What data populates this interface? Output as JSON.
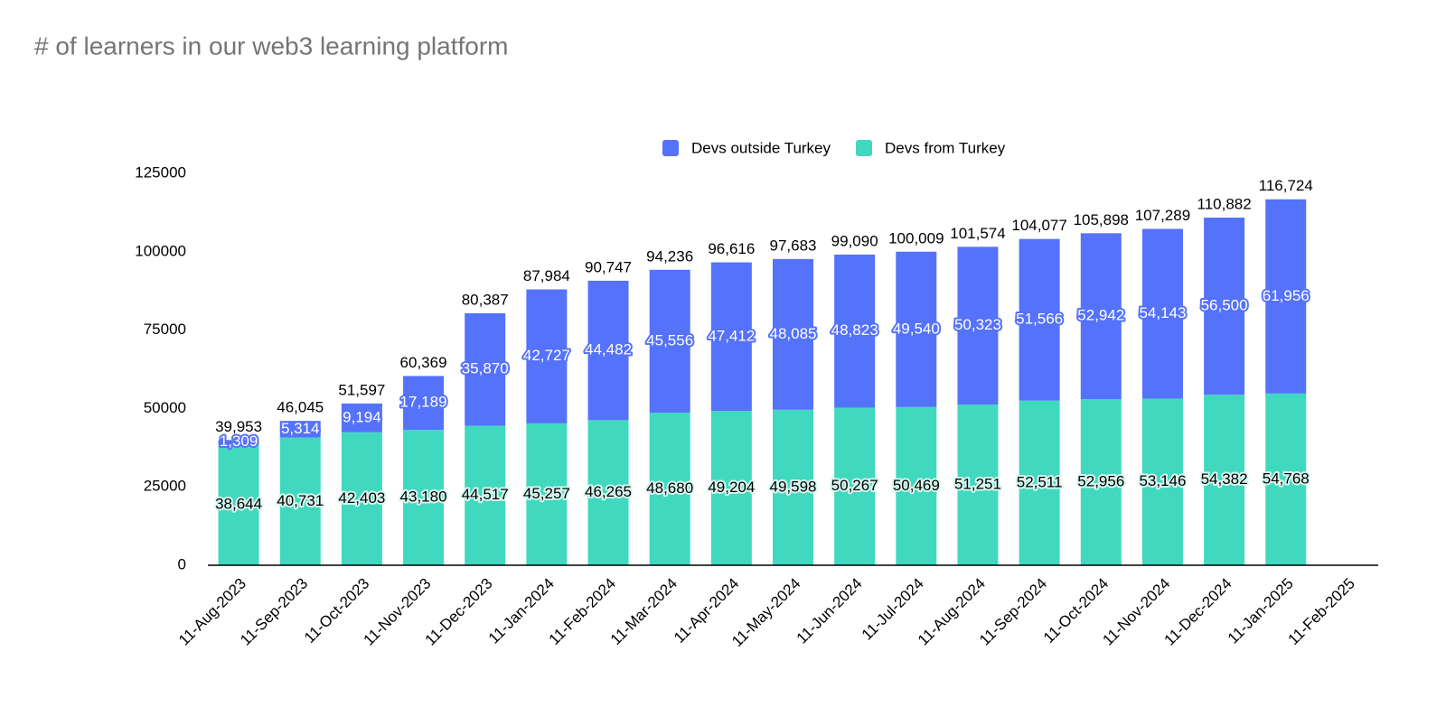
{
  "chart_data": {
    "type": "stacked-bar",
    "title": "# of learners in our web3 learning platform",
    "categories": [
      "11-Aug-2023",
      "11-Sep-2023",
      "11-Oct-2023",
      "11-Nov-2023",
      "11-Dec-2023",
      "11-Jan-2024",
      "11-Feb-2024",
      "11-Mar-2024",
      "11-Apr-2024",
      "11-May-2024",
      "11-Jun-2024",
      "11-Jul-2024",
      "11-Aug-2024",
      "11-Sep-2024",
      "11-Oct-2024",
      "11-Nov-2024",
      "11-Dec-2024",
      "11-Jan-2025",
      "11-Feb-2025"
    ],
    "series": [
      {
        "name": "Devs from Turkey",
        "color": "#40d9bf",
        "values": [
          38644,
          40731,
          42403,
          43180,
          44517,
          45257,
          46265,
          48680,
          49204,
          49598,
          50267,
          50469,
          51251,
          52511,
          52956,
          53146,
          54382,
          54768,
          null
        ],
        "value_labels": [
          "38,644",
          "40,731",
          "42,403",
          "43,180",
          "44,517",
          "45,257",
          "46,265",
          "48,680",
          "49,204",
          "49,598",
          "50,267",
          "50,469",
          "51,251",
          "52,511",
          "52,956",
          "53,146",
          "54,382",
          "54,768",
          null
        ]
      },
      {
        "name": "Devs outside Turkey",
        "color": "#5572fb",
        "values": [
          1309,
          5314,
          9194,
          17189,
          35870,
          42727,
          44482,
          45556,
          47412,
          48085,
          48823,
          49540,
          50323,
          51566,
          52942,
          54143,
          56500,
          61956,
          null
        ],
        "value_labels": [
          "1,309",
          "5,314",
          "9,194",
          "17,189",
          "35,870",
          "42,727",
          "44,482",
          "45,556",
          "47,412",
          "48,085",
          "48,823",
          "49,540",
          "50,323",
          "51,566",
          "52,942",
          "54,143",
          "56,500",
          "61,956",
          null
        ]
      }
    ],
    "totals": {
      "values": [
        39953,
        46045,
        51597,
        60369,
        80387,
        87984,
        90747,
        94236,
        96616,
        97683,
        99090,
        100009,
        101574,
        104077,
        105898,
        107289,
        110882,
        116724,
        null
      ],
      "value_labels": [
        "39,953",
        "46,045",
        "51,597",
        "60,369",
        "80,387",
        "87,984",
        "90,747",
        "94,236",
        "96,616",
        "97,683",
        "99,090",
        "100,009",
        "101,574",
        "104,077",
        "105,898",
        "107,289",
        "110,882",
        "116,724",
        null
      ]
    },
    "ylim": [
      0,
      125000
    ],
    "yticks": [
      0,
      25000,
      50000,
      75000,
      100000,
      125000
    ],
    "legend": "top"
  }
}
